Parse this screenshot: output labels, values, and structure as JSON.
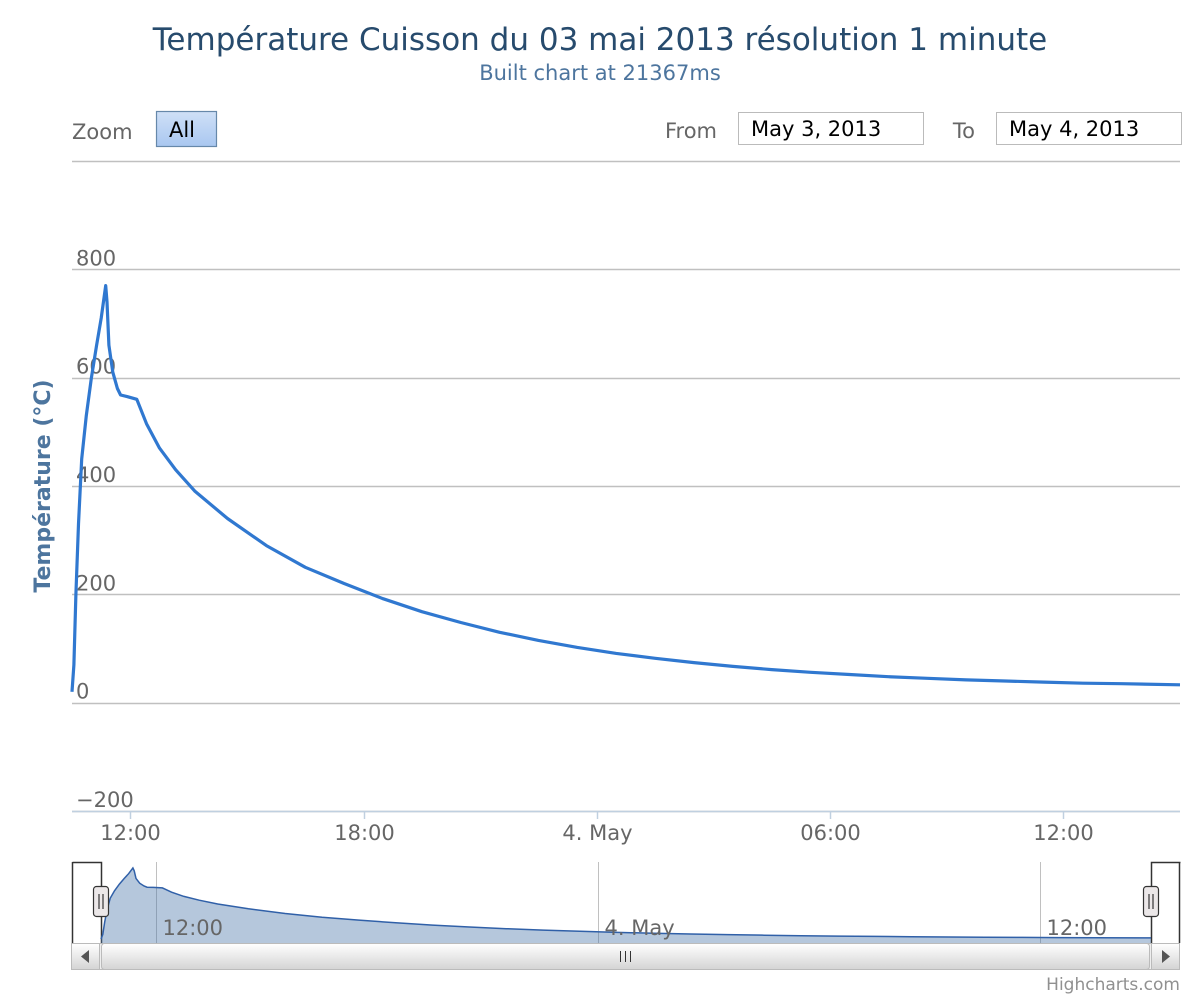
{
  "chart_data": {
    "type": "line",
    "title": "Température Cuisson du 03 mai 2013 résolution 1 minute",
    "subtitle": "Built chart at 21367ms",
    "ylabel": "Température (°C)",
    "xlabel": "",
    "ylim": [
      -200,
      1000
    ],
    "yticks": [
      -200,
      0,
      200,
      400,
      600,
      800
    ],
    "xlim": [
      "2013-05-03T10:30",
      "2013-05-04T15:00"
    ],
    "xticks": [
      {
        "t": "2013-05-03T12:00",
        "label": "12:00"
      },
      {
        "t": "2013-05-03T18:00",
        "label": "18:00"
      },
      {
        "t": "2013-05-04T00:00",
        "label": "4. May"
      },
      {
        "t": "2013-05-04T06:00",
        "label": "06:00"
      },
      {
        "t": "2013-05-04T12:00",
        "label": "12:00"
      }
    ],
    "grid": true,
    "legend": "none",
    "color": "#3078d0",
    "series": [
      {
        "points": [
          [
            "2013-05-03T10:30",
            20
          ],
          [
            "2013-05-03T10:33",
            70
          ],
          [
            "2013-05-03T10:36",
            200
          ],
          [
            "2013-05-03T10:40",
            330
          ],
          [
            "2013-05-03T10:45",
            450
          ],
          [
            "2013-05-03T10:52",
            530
          ],
          [
            "2013-05-03T11:00",
            600
          ],
          [
            "2013-05-03T11:08",
            660
          ],
          [
            "2013-05-03T11:15",
            710
          ],
          [
            "2013-05-03T11:22",
            770
          ],
          [
            "2013-05-03T11:24",
            740
          ],
          [
            "2013-05-03T11:27",
            660
          ],
          [
            "2013-05-03T11:33",
            610
          ],
          [
            "2013-05-03T11:40",
            580
          ],
          [
            "2013-05-03T11:45",
            568
          ],
          [
            "2013-05-03T11:55",
            565
          ],
          [
            "2013-05-03T12:10",
            560
          ],
          [
            "2013-05-03T12:25",
            515
          ],
          [
            "2013-05-03T12:45",
            470
          ],
          [
            "2013-05-03T13:10",
            430
          ],
          [
            "2013-05-03T13:40",
            390
          ],
          [
            "2013-05-03T14:30",
            340
          ],
          [
            "2013-05-03T15:30",
            290
          ],
          [
            "2013-05-03T16:30",
            250
          ],
          [
            "2013-05-03T17:30",
            220
          ],
          [
            "2013-05-03T18:30",
            192
          ],
          [
            "2013-05-03T19:30",
            168
          ],
          [
            "2013-05-03T20:30",
            148
          ],
          [
            "2013-05-03T21:30",
            130
          ],
          [
            "2013-05-03T22:30",
            115
          ],
          [
            "2013-05-03T23:30",
            102
          ],
          [
            "2013-05-04T00:30",
            91
          ],
          [
            "2013-05-04T01:30",
            82
          ],
          [
            "2013-05-04T02:30",
            74
          ],
          [
            "2013-05-04T03:30",
            67
          ],
          [
            "2013-05-04T04:30",
            61
          ],
          [
            "2013-05-04T05:30",
            56
          ],
          [
            "2013-05-04T06:30",
            52
          ],
          [
            "2013-05-04T07:30",
            48
          ],
          [
            "2013-05-04T08:30",
            45
          ],
          [
            "2013-05-04T09:30",
            42
          ],
          [
            "2013-05-04T10:30",
            40
          ],
          [
            "2013-05-04T11:30",
            38
          ],
          [
            "2013-05-04T12:30",
            36
          ],
          [
            "2013-05-04T13:30",
            35
          ],
          [
            "2013-05-04T15:00",
            33
          ]
        ]
      }
    ],
    "navigator": {
      "xticks": [
        {
          "t": "2013-05-03T12:00",
          "label": "12:00"
        },
        {
          "t": "2013-05-04T00:00",
          "label": "4. May"
        },
        {
          "t": "2013-05-04T12:00",
          "label": "12:00"
        }
      ]
    }
  },
  "range_selector": {
    "zoom_label": "Zoom",
    "buttons": [
      "All"
    ],
    "from_label": "From",
    "to_label": "To",
    "from_value": "May 3, 2013",
    "to_value": "May 4, 2013"
  },
  "credits": "Highcharts.com"
}
